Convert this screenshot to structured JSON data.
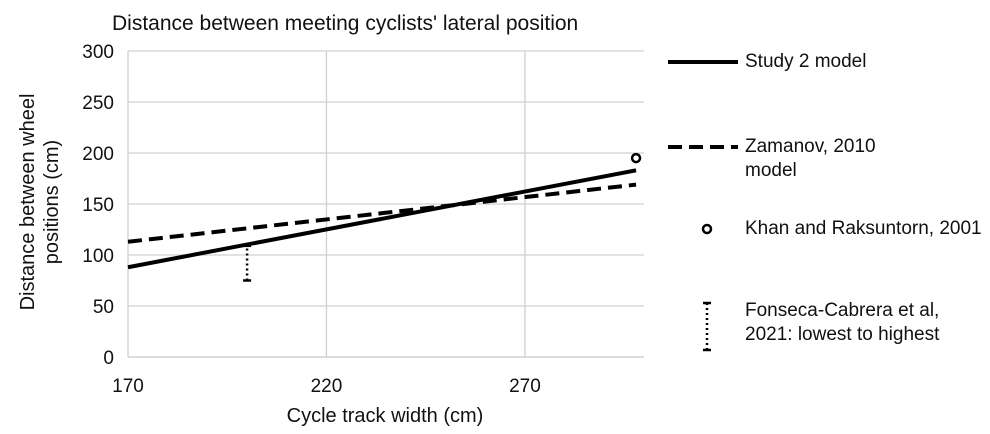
{
  "chart_data": {
    "type": "line",
    "title": "Distance between meeting cyclists' lateral position",
    "x_label": "Cycle track width (cm)",
    "y_label": "Distance between wheel positions (cm)",
    "xlim": [
      170,
      300
    ],
    "xticks": [
      170,
      220,
      270
    ],
    "ylim": [
      0,
      300
    ],
    "yticks": [
      0,
      50,
      100,
      150,
      200,
      250,
      300
    ],
    "grid": true,
    "series": [
      {
        "name": "Study 2 model",
        "style": "solid",
        "color": "#000000",
        "x": [
          170,
          298
        ],
        "values": [
          88,
          183
        ]
      },
      {
        "name": "Zamanov, 2010 model",
        "style": "dashed",
        "color": "#000000",
        "x": [
          170,
          298
        ],
        "values": [
          113,
          169
        ]
      },
      {
        "name": "Khan and Raksuntorn, 2001",
        "style": "marker",
        "color": "#000000",
        "x": [
          298
        ],
        "values": [
          195
        ]
      },
      {
        "name": "Fonseca-Cabrera et al, 2021: lowest to highest",
        "style": "range",
        "color": "#000000",
        "x": [
          200,
          200
        ],
        "values": [
          75,
          109
        ]
      }
    ]
  }
}
